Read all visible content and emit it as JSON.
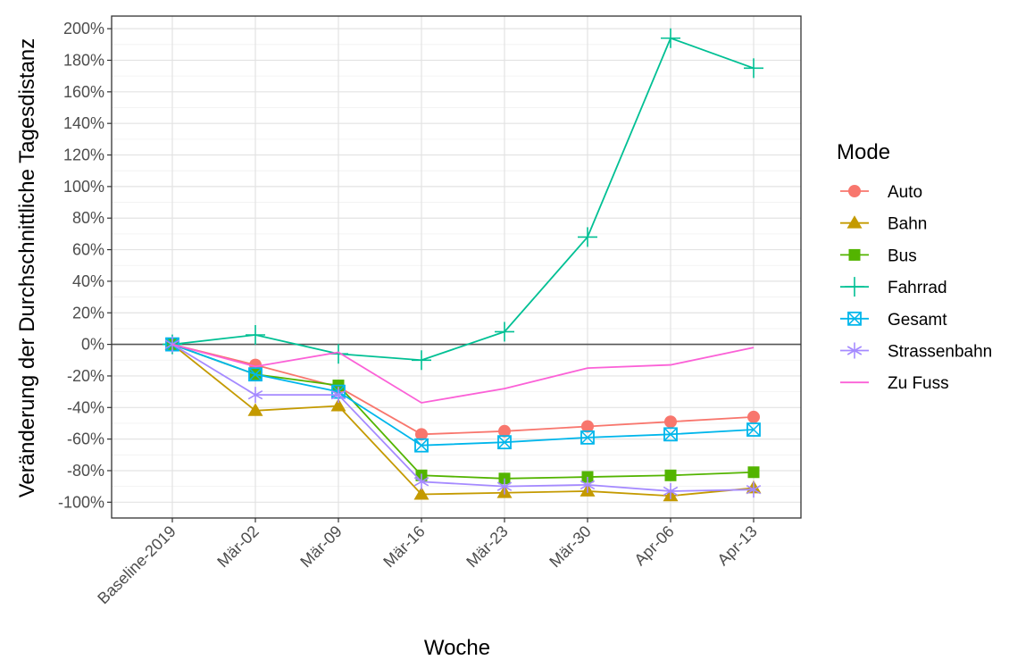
{
  "chart_data": {
    "type": "line",
    "xlabel": "Woche",
    "ylabel": "Veränderung der Durchschnittliche Tagesdistanz",
    "categories": [
      "Baseline-2019",
      "Mär-02",
      "Mär-09",
      "Mär-16",
      "Mär-23",
      "Mär-30",
      "Apr-06",
      "Apr-13"
    ],
    "yticks": [
      -100,
      -80,
      -60,
      -40,
      -20,
      0,
      20,
      40,
      60,
      80,
      100,
      120,
      140,
      160,
      180,
      200
    ],
    "ytick_suffix": "%",
    "ylim": [
      -110,
      208
    ],
    "grid": true,
    "reference_line": 0,
    "legend": {
      "title": "Mode",
      "position": "right"
    },
    "series": [
      {
        "name": "Auto",
        "color": "#F8766D",
        "marker": "circle",
        "values": [
          0,
          -13,
          -27,
          -57,
          -55,
          -52,
          -49,
          -46
        ]
      },
      {
        "name": "Bahn",
        "color": "#C49A00",
        "marker": "triangle",
        "values": [
          0,
          -42,
          -39,
          -95,
          -94,
          -93,
          -96,
          -91
        ]
      },
      {
        "name": "Bus",
        "color": "#53B400",
        "marker": "square",
        "values": [
          0,
          -19,
          -26,
          -83,
          -85,
          -84,
          -83,
          -81
        ]
      },
      {
        "name": "Fahrrad",
        "color": "#00C094",
        "marker": "plus",
        "values": [
          0,
          6,
          -6,
          -10,
          8,
          68,
          194,
          175
        ]
      },
      {
        "name": "Gesamt",
        "color": "#00B6EB",
        "marker": "boxx",
        "values": [
          0,
          -19,
          -30,
          -64,
          -62,
          -59,
          -57,
          -54
        ]
      },
      {
        "name": "Strassenbahn",
        "color": "#A58AFF",
        "marker": "asterisk",
        "values": [
          0,
          -32,
          -32,
          -87,
          -90,
          -89,
          -93,
          -92
        ]
      },
      {
        "name": "Zu Fuss",
        "color": "#FB61D7",
        "marker": "none",
        "values": [
          0,
          -14,
          -5,
          -37,
          -28,
          -15,
          -13,
          -2
        ]
      }
    ]
  }
}
